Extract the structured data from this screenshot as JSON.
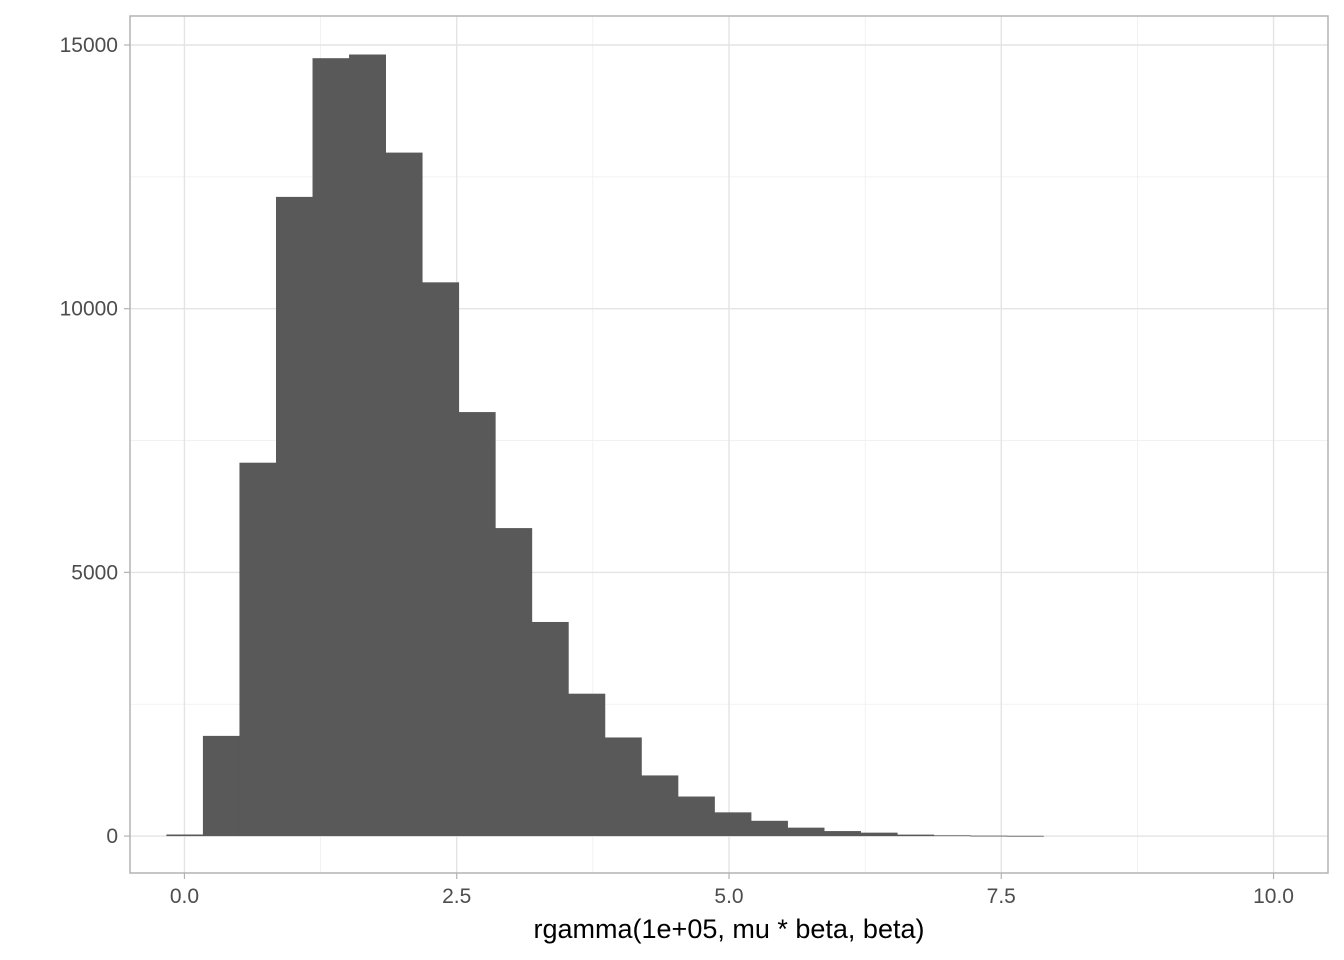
{
  "chart_data": {
    "type": "bar",
    "subtype": "histogram",
    "title": "",
    "xlabel": "rgamma(1e+05, mu * beta, beta)",
    "ylabel": "",
    "xlim": [
      -0.5,
      10.5
    ],
    "ylim": [
      -700,
      15550
    ],
    "x_ticks": [
      0.0,
      2.5,
      5.0,
      7.5,
      10.0
    ],
    "x_tick_labels": [
      "0.0",
      "2.5",
      "5.0",
      "7.5",
      "10.0"
    ],
    "x_minor_ticks": [
      1.25,
      3.75,
      6.25,
      8.75
    ],
    "y_ticks": [
      0,
      5000,
      10000,
      15000
    ],
    "y_tick_labels": [
      "0",
      "5000",
      "10000",
      "15000"
    ],
    "y_minor_ticks": [
      2500,
      7500,
      12500
    ],
    "grid": true,
    "bins": {
      "start": -0.166,
      "width": 0.3355,
      "counts": [
        30,
        1900,
        7080,
        12120,
        14750,
        14820,
        12960,
        10500,
        8040,
        5840,
        4060,
        2700,
        1870,
        1150,
        750,
        450,
        290,
        160,
        95,
        65,
        28,
        15,
        8,
        5
      ]
    },
    "colors": {
      "bar": "#595959",
      "grid_major": "#e4e4e4",
      "grid_minor": "#efefef",
      "panel_border": "#b3b3b3",
      "tick_label": "#4d4d4d",
      "background": "#ffffff"
    }
  }
}
